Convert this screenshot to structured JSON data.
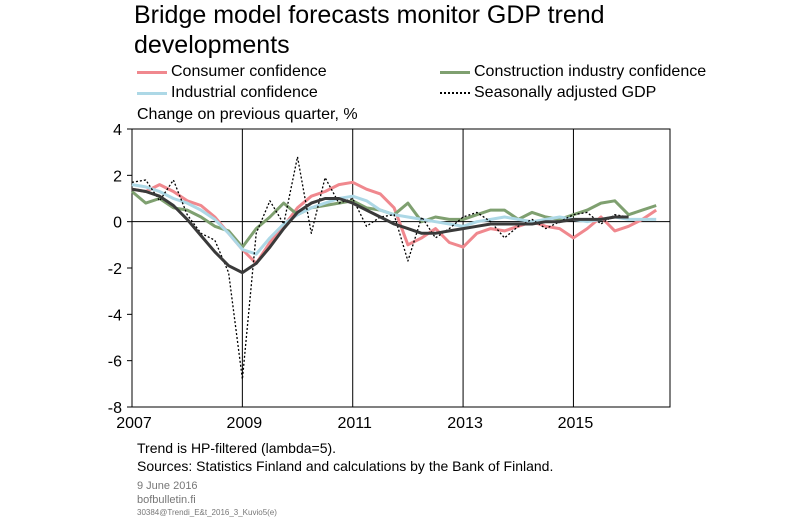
{
  "title": "Bridge model forecasts monitor GDP trend developments",
  "legend": {
    "consumer": "Consumer confidence",
    "construction": "Construction industry confidence",
    "industrial": "Industrial confidence",
    "gdp": "Seasonally adjusted GDP"
  },
  "footer": {
    "trend_note": "Trend is HP-filtered (lambda=5).",
    "sources": "Sources: Statistics Finland and calculations by the Bank of Finland.",
    "date": "9 June 2016",
    "site": "bofbulletin.fi",
    "code": "30384@Trendi_E&t_2016_3_Kuvio5(e)"
  },
  "chart_data": {
    "type": "line",
    "ylabel": "Change on previous quarter, %",
    "ylim": [
      -8,
      4
    ],
    "yticks": [
      4,
      2,
      0,
      -2,
      -4,
      -6,
      -8
    ],
    "xlim": [
      2007,
      2016.75
    ],
    "xticks": [
      2007,
      2009,
      2011,
      2013,
      2015
    ],
    "xticklabels": [
      "2007",
      "2009",
      "2011",
      "2013",
      "2015"
    ],
    "colors": {
      "consumer": "#f0888e",
      "construction": "#7fa070",
      "industrial": "#add8e6",
      "gdp": "#000000",
      "trend": "#3a3a3a"
    },
    "series": [
      {
        "name": "Consumer confidence",
        "key": "consumer",
        "x": [
          2007.0,
          2007.25,
          2007.5,
          2007.75,
          2008.0,
          2008.25,
          2008.5,
          2008.75,
          2009.0,
          2009.25,
          2009.5,
          2009.75,
          2010.0,
          2010.25,
          2010.5,
          2010.75,
          2011.0,
          2011.25,
          2011.5,
          2011.75,
          2012.0,
          2012.25,
          2012.5,
          2012.75,
          2013.0,
          2013.25,
          2013.5,
          2013.75,
          2014.0,
          2014.25,
          2014.5,
          2014.75,
          2015.0,
          2015.25,
          2015.5,
          2015.75,
          2016.0,
          2016.25,
          2016.5
        ],
        "y": [
          1.4,
          1.3,
          1.6,
          1.3,
          0.9,
          0.7,
          0.2,
          -0.5,
          -1.2,
          -1.8,
          -0.9,
          -0.2,
          0.6,
          1.1,
          1.3,
          1.6,
          1.7,
          1.4,
          1.2,
          0.6,
          -1.0,
          -0.7,
          -0.3,
          -0.9,
          -1.1,
          -0.5,
          -0.3,
          -0.4,
          -0.2,
          0.0,
          -0.2,
          -0.3,
          -0.7,
          -0.3,
          0.2,
          -0.4,
          -0.2,
          0.1,
          0.5
        ]
      },
      {
        "name": "Construction industry confidence",
        "key": "construction",
        "x": [
          2007.0,
          2007.25,
          2007.5,
          2007.75,
          2008.0,
          2008.25,
          2008.5,
          2008.75,
          2009.0,
          2009.25,
          2009.5,
          2009.75,
          2010.0,
          2010.25,
          2010.5,
          2010.75,
          2011.0,
          2011.25,
          2011.5,
          2011.75,
          2012.0,
          2012.25,
          2012.5,
          2012.75,
          2013.0,
          2013.25,
          2013.5,
          2013.75,
          2014.0,
          2014.25,
          2014.5,
          2014.75,
          2015.0,
          2015.25,
          2015.5,
          2015.75,
          2016.0,
          2016.25,
          2016.5
        ],
        "y": [
          1.3,
          0.8,
          1.0,
          0.6,
          0.5,
          0.2,
          -0.2,
          -0.4,
          -1.1,
          -0.3,
          0.2,
          0.8,
          0.3,
          0.6,
          0.7,
          0.8,
          0.9,
          0.6,
          0.5,
          0.3,
          0.8,
          0.0,
          0.2,
          0.1,
          0.1,
          0.3,
          0.5,
          0.5,
          0.1,
          0.4,
          0.2,
          0.1,
          0.3,
          0.5,
          0.8,
          0.9,
          0.3,
          0.5,
          0.7
        ]
      },
      {
        "name": "Industrial confidence",
        "key": "industrial",
        "x": [
          2007.0,
          2007.25,
          2007.5,
          2007.75,
          2008.0,
          2008.25,
          2008.5,
          2008.75,
          2009.0,
          2009.25,
          2009.5,
          2009.75,
          2010.0,
          2010.25,
          2010.5,
          2010.75,
          2011.0,
          2011.25,
          2011.5,
          2011.75,
          2012.0,
          2012.25,
          2012.5,
          2012.75,
          2013.0,
          2013.25,
          2013.5,
          2013.75,
          2014.0,
          2014.25,
          2014.5,
          2014.75,
          2015.0,
          2015.25,
          2015.5,
          2015.75,
          2016.0,
          2016.25,
          2016.5
        ],
        "y": [
          1.6,
          1.5,
          1.3,
          1.0,
          0.8,
          0.5,
          0.1,
          -0.5,
          -1.2,
          -1.4,
          -0.7,
          -0.1,
          0.3,
          0.6,
          0.8,
          1.0,
          1.1,
          0.9,
          0.5,
          0.3,
          0.2,
          0.1,
          0.0,
          -0.1,
          -0.2,
          0.0,
          0.1,
          0.2,
          0.1,
          0.0,
          0.1,
          0.2,
          0.1,
          0.0,
          0.1,
          0.2,
          0.1,
          0.1,
          0.1
        ]
      },
      {
        "name": "Seasonally adjusted GDP",
        "key": "gdp",
        "x": [
          2007.0,
          2007.25,
          2007.5,
          2007.75,
          2008.0,
          2008.25,
          2008.5,
          2008.75,
          2009.0,
          2009.25,
          2009.5,
          2009.75,
          2010.0,
          2010.25,
          2010.5,
          2010.75,
          2011.0,
          2011.25,
          2011.5,
          2011.75,
          2012.0,
          2012.25,
          2012.5,
          2012.75,
          2013.0,
          2013.25,
          2013.5,
          2013.75,
          2014.0,
          2014.25,
          2014.5,
          2014.75,
          2015.0,
          2015.25,
          2015.5,
          2015.75,
          2016.0
        ],
        "y": [
          1.7,
          1.8,
          0.9,
          1.8,
          0.3,
          -0.5,
          -0.8,
          -2.2,
          -6.8,
          -0.5,
          0.9,
          -0.1,
          2.8,
          -0.5,
          1.9,
          0.8,
          1.0,
          -0.2,
          0.2,
          0.3,
          -1.7,
          0.2,
          -0.7,
          -0.3,
          0.2,
          0.4,
          0.0,
          -0.7,
          -0.2,
          0.1,
          -0.3,
          0.0,
          0.3,
          0.4,
          -0.1,
          0.3,
          0.2
        ]
      },
      {
        "key": "trend",
        "x": [
          2007.0,
          2007.25,
          2007.5,
          2007.75,
          2008.0,
          2008.25,
          2008.5,
          2008.75,
          2009.0,
          2009.25,
          2009.5,
          2009.75,
          2010.0,
          2010.25,
          2010.5,
          2010.75,
          2011.0,
          2011.25,
          2011.5,
          2011.75,
          2012.0,
          2012.25,
          2012.5,
          2012.75,
          2013.0,
          2013.25,
          2013.5,
          2013.75,
          2014.0,
          2014.25,
          2014.5,
          2014.75,
          2015.0,
          2015.25,
          2015.5,
          2015.75,
          2016.0
        ],
        "y": [
          1.4,
          1.3,
          1.1,
          0.7,
          0.1,
          -0.6,
          -1.3,
          -1.9,
          -2.2,
          -1.8,
          -1.1,
          -0.3,
          0.4,
          0.8,
          1.0,
          1.0,
          0.8,
          0.5,
          0.2,
          -0.1,
          -0.3,
          -0.5,
          -0.5,
          -0.4,
          -0.3,
          -0.2,
          -0.1,
          -0.1,
          -0.1,
          -0.1,
          0.0,
          0.0,
          0.1,
          0.1,
          0.1,
          0.2,
          0.2
        ]
      }
    ]
  }
}
